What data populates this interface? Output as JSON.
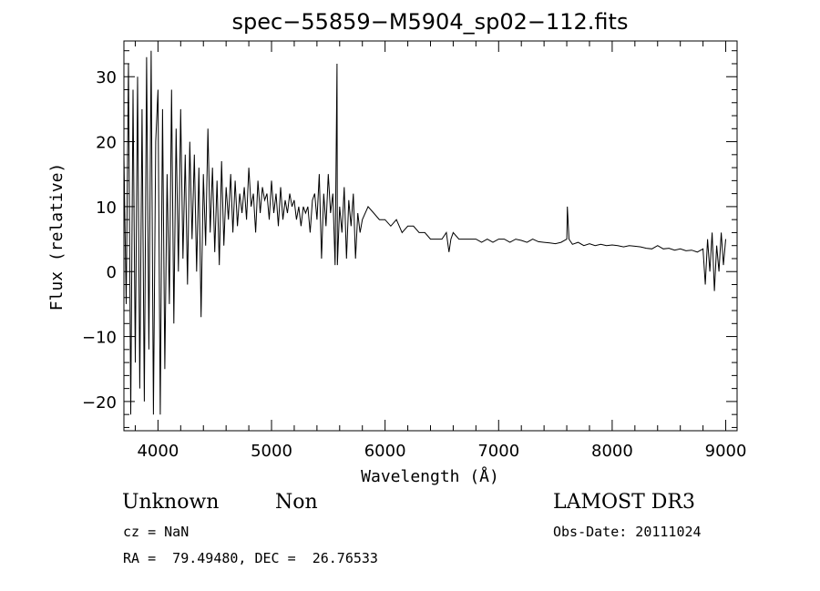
{
  "chart_data": {
    "type": "line",
    "title": "spec−55859−M5904_sp02−112.fits",
    "xlabel": "Wavelength (Å)",
    "ylabel": "Flux (relative)",
    "xlim": [
      3700,
      9100
    ],
    "ylim": [
      -24.5,
      35.5
    ],
    "x_ticks": [
      4000,
      5000,
      6000,
      7000,
      8000,
      9000
    ],
    "x_tick_labels": [
      "4000",
      "5000",
      "6000",
      "7000",
      "8000",
      "9000"
    ],
    "y_ticks": [
      -20,
      -10,
      0,
      10,
      20,
      30
    ],
    "y_tick_labels": [
      "−20",
      "−10",
      "0",
      "10",
      "20",
      "30"
    ],
    "x_minor_step": 200,
    "y_minor_step": 2,
    "grid": false,
    "line_color": "#000000",
    "series": [
      {
        "x": [
          3700,
          3720,
          3740,
          3760,
          3780,
          3800,
          3820,
          3840,
          3860,
          3880,
          3900,
          3920,
          3940,
          3960,
          3980,
          4000,
          4020,
          4040,
          4060,
          4080,
          4100,
          4120,
          4140,
          4160,
          4180,
          4200,
          4220,
          4240,
          4260,
          4280,
          4300,
          4320,
          4340,
          4360,
          4380,
          4400,
          4420,
          4440,
          4460,
          4480,
          4500,
          4520,
          4540,
          4560,
          4580,
          4600,
          4620,
          4640,
          4660,
          4680,
          4700,
          4720,
          4740,
          4760,
          4780,
          4800,
          4820,
          4840,
          4860,
          4880,
          4900,
          4920,
          4940,
          4960,
          4980,
          5000,
          5020,
          5040,
          5060,
          5080,
          5100,
          5120,
          5140,
          5160,
          5180,
          5200,
          5220,
          5240,
          5260,
          5280,
          5300,
          5320,
          5340,
          5360,
          5380,
          5400,
          5420,
          5440,
          5460,
          5480,
          5500,
          5520,
          5540,
          5560,
          5577,
          5580,
          5600,
          5620,
          5640,
          5660,
          5680,
          5700,
          5720,
          5740,
          5760,
          5780,
          5800,
          5850,
          5900,
          5950,
          6000,
          6050,
          6100,
          6150,
          6200,
          6250,
          6300,
          6350,
          6400,
          6450,
          6500,
          6540,
          6563,
          6580,
          6600,
          6650,
          6700,
          6750,
          6800,
          6850,
          6900,
          6950,
          7000,
          7050,
          7100,
          7150,
          7200,
          7250,
          7300,
          7350,
          7400,
          7450,
          7500,
          7550,
          7600,
          7605,
          7620,
          7650,
          7700,
          7750,
          7800,
          7850,
          7900,
          7950,
          8000,
          8050,
          8100,
          8150,
          8200,
          8250,
          8300,
          8350,
          8400,
          8450,
          8500,
          8550,
          8600,
          8650,
          8700,
          8750,
          8800,
          8820,
          8840,
          8860,
          8880,
          8900,
          8920,
          8940,
          8960,
          8980,
          9000
        ],
        "y": [
          18,
          -5,
          32,
          -22,
          28,
          -14,
          30,
          -18,
          25,
          -20,
          33,
          -12,
          34,
          -22,
          20,
          28,
          -22,
          25,
          -15,
          15,
          -5,
          28,
          -8,
          22,
          0,
          25,
          2,
          18,
          -2,
          20,
          5,
          18,
          0,
          16,
          -7,
          15,
          4,
          22,
          6,
          16,
          3,
          14,
          1,
          17,
          4,
          13,
          8,
          15,
          6,
          14,
          7,
          12,
          9,
          13,
          8,
          16,
          10,
          12,
          6,
          14,
          9,
          13,
          11,
          12,
          8,
          14,
          9,
          12,
          7,
          13,
          8,
          11,
          9,
          12,
          10,
          11,
          8,
          10,
          7,
          10,
          9,
          10,
          6,
          11,
          12,
          8,
          15,
          2,
          12,
          7,
          15,
          9,
          12,
          1,
          32,
          1,
          10,
          6,
          13,
          2,
          11,
          7,
          12,
          2,
          9,
          6,
          8,
          10,
          9,
          8,
          8,
          7,
          8,
          6,
          7,
          7,
          6,
          6,
          5,
          5,
          5,
          6,
          3,
          5,
          6,
          5,
          5,
          5,
          5,
          4.5,
          5,
          4.5,
          5,
          5,
          4.5,
          5,
          4.8,
          4.5,
          5,
          4.6,
          4.5,
          4.4,
          4.3,
          4.5,
          5,
          10,
          5,
          4.2,
          4.5,
          4,
          4.3,
          4,
          4.2,
          4,
          4.1,
          4,
          3.8,
          4,
          3.9,
          3.8,
          3.6,
          3.5,
          4,
          3.5,
          3.6,
          3.3,
          3.5,
          3.2,
          3.3,
          3,
          3.5,
          -2,
          5,
          0,
          6,
          -3,
          4,
          0,
          6,
          1,
          5
        ]
      }
    ]
  },
  "info": {
    "object_class": "Unknown",
    "object_subclass": "Non",
    "survey": "LAMOST DR3",
    "cz": "cz = NaN",
    "obs_date": "Obs-Date: 20111024",
    "coords": "RA =  79.49480, DEC =  26.76533"
  }
}
